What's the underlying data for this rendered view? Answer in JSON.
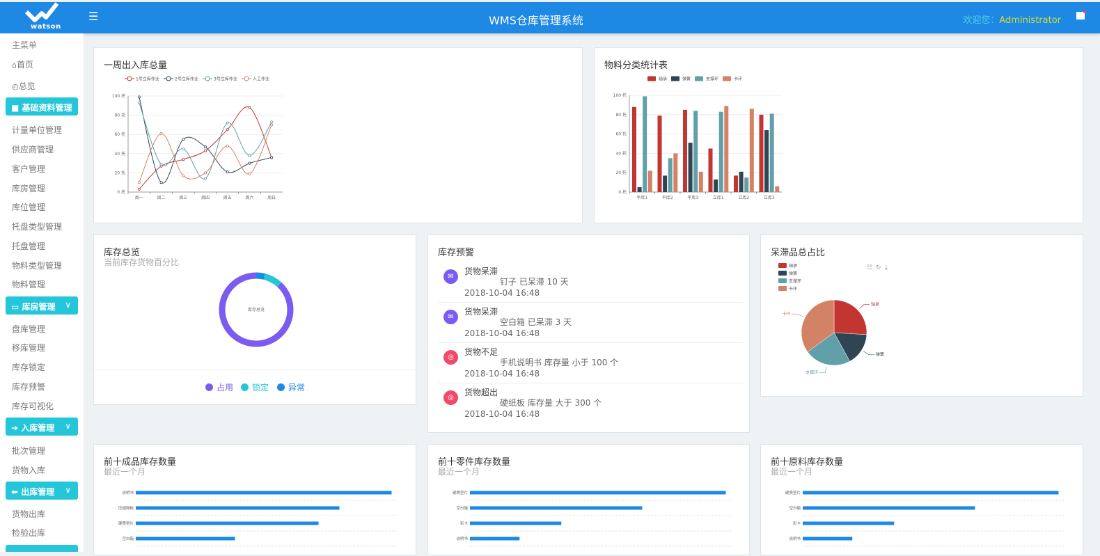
{
  "header": {
    "logo_text": "watson",
    "title": "WMS仓库管理系统",
    "welcome_label": "欢迎您：",
    "username": "Administrator",
    "menu_icon": "hamburger-icon",
    "flag_icon": "flag-icon"
  },
  "sidebar": {
    "items": [
      {
        "type": "item",
        "label": "主菜单"
      },
      {
        "type": "item",
        "label": "首页",
        "icon": "home-icon"
      },
      {
        "type": "item",
        "label": "总览",
        "icon": "dashboard-icon"
      },
      {
        "type": "group",
        "label": "基础资料管理",
        "icon": "folder-icon"
      },
      {
        "type": "item",
        "label": "计量单位管理"
      },
      {
        "type": "item",
        "label": "供应商管理"
      },
      {
        "type": "item",
        "label": "客户管理"
      },
      {
        "type": "item",
        "label": "库房管理"
      },
      {
        "type": "item",
        "label": "库位管理"
      },
      {
        "type": "item",
        "label": "托盘类型管理"
      },
      {
        "type": "item",
        "label": "托盘管理"
      },
      {
        "type": "item",
        "label": "物料类型管理"
      },
      {
        "type": "item",
        "label": "物料管理"
      },
      {
        "type": "group",
        "label": "库房管理",
        "icon": "monitor-icon",
        "chevron": true
      },
      {
        "type": "item",
        "label": "盘库管理"
      },
      {
        "type": "item",
        "label": "移库管理"
      },
      {
        "type": "item",
        "label": "库存锁定"
      },
      {
        "type": "item",
        "label": "库存预警"
      },
      {
        "type": "item",
        "label": "库存可视化"
      },
      {
        "type": "group",
        "label": "入库管理",
        "icon": "arrow-right-icon",
        "chevron": true
      },
      {
        "type": "item",
        "label": "批次管理"
      },
      {
        "type": "item",
        "label": "货物入库"
      },
      {
        "type": "group",
        "label": "出库管理",
        "icon": "arrow-left-icon",
        "chevron": true
      },
      {
        "type": "item",
        "label": "货物出库"
      },
      {
        "type": "item",
        "label": "检验出库"
      },
      {
        "type": "group",
        "label": ""
      }
    ]
  },
  "colors": {
    "header": "#1e88e5",
    "accent": "#26c6da",
    "bar": "#1e88e5",
    "series": [
      "#c23531",
      "#2f4554",
      "#61a0a8",
      "#d48265"
    ]
  },
  "weekly": {
    "title": "一周出入库总量",
    "chart_data": {
      "type": "line",
      "smooth": true,
      "categories": [
        "周一",
        "周二",
        "周三",
        "周四",
        "周五",
        "周六",
        "周日"
      ],
      "yticks": [
        "0 托",
        "20 托",
        "40 托",
        "60 托",
        "80 托",
        "100 托"
      ],
      "ylim": [
        0,
        100
      ],
      "legend": "top-center",
      "grid": true,
      "series": [
        {
          "name": "1号立库作业",
          "values": [
            3,
            27,
            34,
            43,
            65,
            88,
            36
          ]
        },
        {
          "name": "2号立库作业",
          "values": [
            99,
            10,
            55,
            47,
            21,
            30,
            36
          ]
        },
        {
          "name": "3号立库作业",
          "values": [
            93,
            29,
            45,
            14,
            72,
            38,
            73
          ]
        },
        {
          "name": "人工作业",
          "values": [
            10,
            61,
            17,
            20,
            48,
            19,
            70
          ]
        }
      ]
    }
  },
  "material": {
    "title": "物料分类统计表",
    "chart_data": {
      "type": "bar",
      "categories": [
        "平库1",
        "平库2",
        "平库3",
        "立库1",
        "立库2",
        "立库3"
      ],
      "yticks": [
        "0 托",
        "20 托",
        "40 托",
        "60 托",
        "80 托",
        "100 托"
      ],
      "ylim": [
        0,
        100
      ],
      "legend": "top-center",
      "grid": true,
      "series": [
        {
          "name": "轴承",
          "values": [
            88,
            79,
            85,
            45,
            17,
            80
          ]
        },
        {
          "name": "弹簧",
          "values": [
            5,
            17,
            51,
            13,
            21,
            64
          ]
        },
        {
          "name": "支撑环",
          "values": [
            99,
            35,
            84,
            83,
            15,
            81
          ]
        },
        {
          "name": "卡环",
          "values": [
            22,
            40,
            21,
            89,
            86,
            6
          ]
        }
      ]
    }
  },
  "inventory": {
    "title": "库存总览",
    "subtitle": "当前库存货物百分比",
    "center_label": "库存总览",
    "chart_data": {
      "type": "pie",
      "donut": true,
      "slices": [
        {
          "name": "占用",
          "value": 88,
          "color": "#7c5cf0"
        },
        {
          "name": "锁定",
          "value": 8,
          "color": "#26c6da"
        },
        {
          "name": "异常",
          "value": 4,
          "color": "#1e88e5"
        }
      ]
    }
  },
  "warnings": {
    "title": "库存预警",
    "items": [
      {
        "title": "货物呆滞",
        "desc": "钉子 已呆滞 10 天",
        "time": "2018-10-04 16:48",
        "icon": "mail-icon",
        "color": "#7c5cf0"
      },
      {
        "title": "货物呆滞",
        "desc": "空白箱 已呆滞 3 天",
        "time": "2018-10-04 16:48",
        "icon": "mail-icon",
        "color": "#7c5cf0"
      },
      {
        "title": "货物不足",
        "desc": "手机说明书 库存量 小于 100 个",
        "time": "2018-10-04 16:48",
        "icon": "globe-icon",
        "color": "#ef4a6a"
      },
      {
        "title": "货物超出",
        "desc": "硬纸板 库存量 大于 300 个",
        "time": "2018-10-04 16:48",
        "icon": "globe-icon",
        "color": "#ef4a6a"
      }
    ]
  },
  "stagnant": {
    "title": "呆滞品总占比",
    "toolbox": [
      "data-view-icon",
      "refresh-icon",
      "download-icon"
    ],
    "chart_data": {
      "type": "pie",
      "legend": "top-left",
      "slices": [
        {
          "name": "轴承",
          "value": 26
        },
        {
          "name": "弹簧",
          "value": 16
        },
        {
          "name": "支撑环",
          "value": 23
        },
        {
          "name": "卡环",
          "value": 35
        }
      ]
    }
  },
  "top10": [
    {
      "title": "前十成品库存数量",
      "subtitle": "最近一个月",
      "chart_data": {
        "type": "bar",
        "orientation": "horizontal",
        "categories": [
          "说明书",
          "压缩隔板",
          "硬质垫片",
          "空白箱"
        ],
        "values": [
          98,
          78,
          70,
          38
        ]
      }
    },
    {
      "title": "前十零件库存数量",
      "subtitle": "最近一个月",
      "chart_data": {
        "type": "bar",
        "orientation": "horizontal",
        "categories": [
          "硬质垫片",
          "空白箱",
          "彩卡",
          "说明书"
        ],
        "values": [
          98,
          66,
          35,
          19
        ]
      }
    },
    {
      "title": "前十原料库存数量",
      "subtitle": "最近一个月",
      "chart_data": {
        "type": "bar",
        "orientation": "horizontal",
        "categories": [
          "硬质垫片",
          "空白箱",
          "彩卡",
          "说明书"
        ],
        "values": [
          98,
          66,
          35,
          19
        ]
      }
    }
  ]
}
